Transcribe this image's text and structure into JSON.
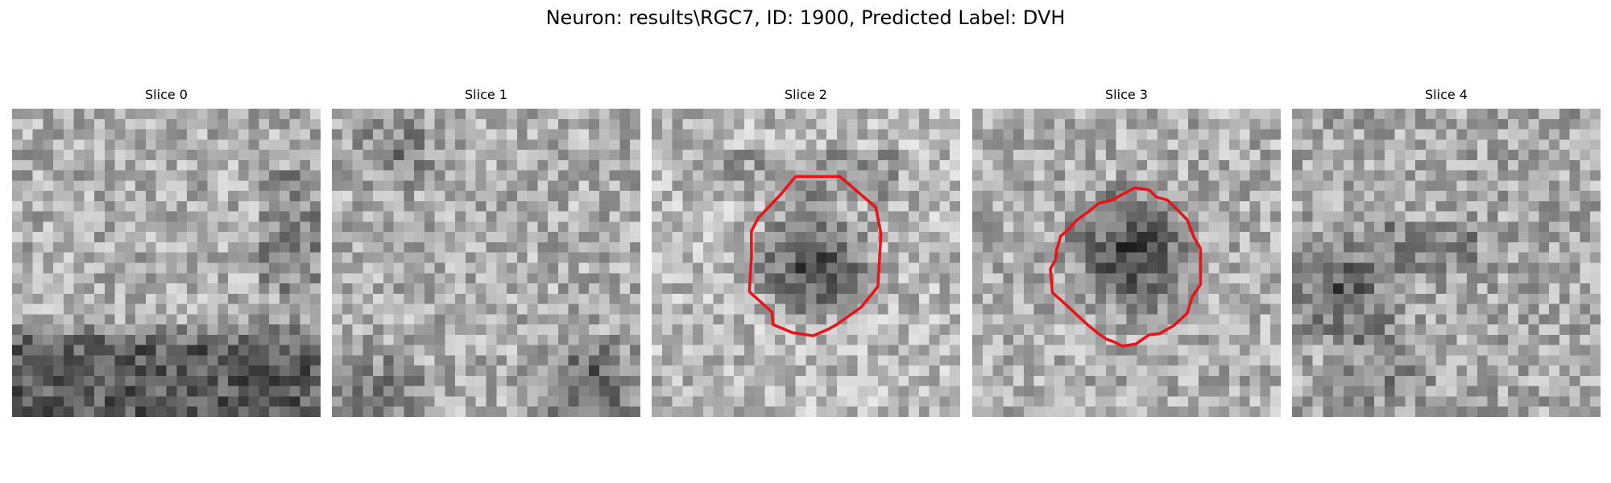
{
  "figure": {
    "title": "Neuron: results\\RGC7, ID: 1900, Predicted Label: DVH"
  },
  "panels": [
    {
      "title": "Slice 0",
      "contour": false,
      "seed": 11,
      "pattern": "bottom-dark"
    },
    {
      "title": "Slice 1",
      "contour": false,
      "seed": 23,
      "pattern": "corners-dark"
    },
    {
      "title": "Slice 2",
      "contour": true,
      "seed": 37,
      "pattern": "center-blob"
    },
    {
      "title": "Slice 3",
      "contour": true,
      "seed": 51,
      "pattern": "center-blob-shift"
    },
    {
      "title": "Slice 4",
      "contour": false,
      "seed": 67,
      "pattern": "left-dark"
    }
  ],
  "colors": {
    "contour": "#e8141a",
    "background": "#ffffff"
  }
}
